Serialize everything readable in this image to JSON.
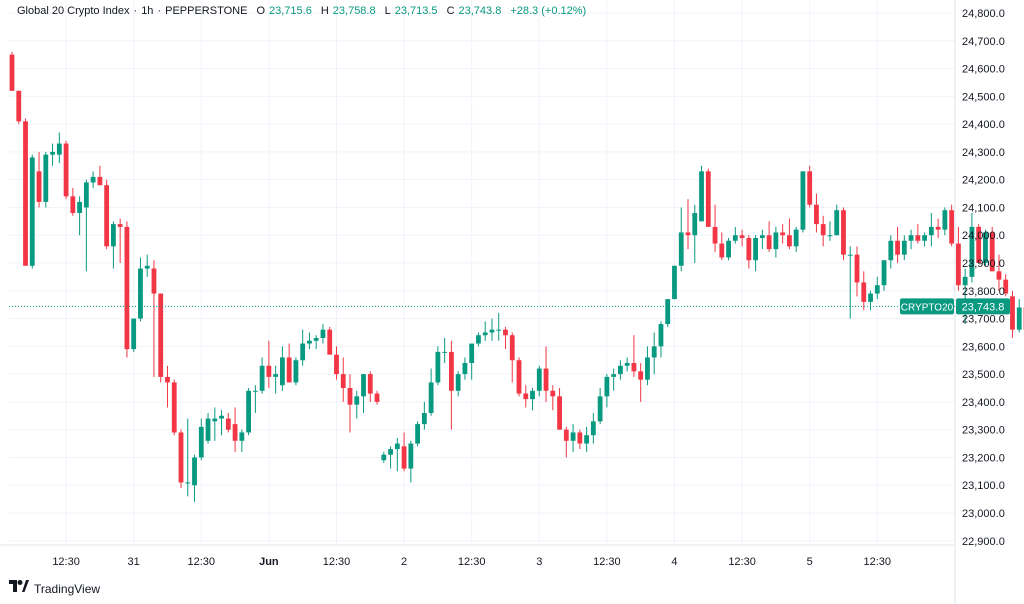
{
  "header": {
    "title": "Global 20 Crypto Index",
    "interval": "1h",
    "source": "PEPPERSTONE",
    "separator1": "·",
    "separator2": "·",
    "o_label": "O",
    "o_value": "23,715.6",
    "h_label": "H",
    "h_value": "23,758.8",
    "l_label": "L",
    "l_value": "23,713.5",
    "c_label": "C",
    "c_value": "23,743.8",
    "change": "+28.3 (+0.12%)"
  },
  "price_badge": {
    "symbol": "CRYPTO20",
    "value": "23,743.8"
  },
  "footer": {
    "brand": "TradingView"
  },
  "colors": {
    "up": "#089981",
    "down": "#f23645",
    "grid": "#f0f3fa",
    "axis_text": "#131722",
    "price_line": "#089981"
  },
  "chart_data": {
    "type": "candlestick",
    "y_axis": {
      "range": [
        22850,
        24840
      ],
      "ticks": [
        22900,
        23000,
        23100,
        23200,
        23300,
        23400,
        23500,
        23600,
        23700,
        23800,
        23900,
        24000,
        24100,
        24200,
        24300,
        24400,
        24500,
        24600,
        24700,
        24800
      ],
      "tick_labels": [
        "22,900.0",
        "23,000.0",
        "23,100.0",
        "23,200.0",
        "23,300.0",
        "23,400.0",
        "23,500.0",
        "23,600.0",
        "23,700.0",
        "23,800.0",
        "23,900.0",
        "24,000.0",
        "24,100.0",
        "24,200.0",
        "24,300.0",
        "24,400.0",
        "24,500.0",
        "24,600.0",
        "24,700.0",
        "24,800.0"
      ]
    },
    "x_axis": {
      "ticks": [
        {
          "bar": 8,
          "label": "12:30",
          "bold": false
        },
        {
          "bar": 18,
          "label": "31",
          "bold": false
        },
        {
          "bar": 28,
          "label": "12:30",
          "bold": false
        },
        {
          "bar": 38,
          "label": "Jun",
          "bold": true
        },
        {
          "bar": 48,
          "label": "12:30",
          "bold": false
        },
        {
          "bar": 58,
          "label": "2",
          "bold": false
        },
        {
          "bar": 68,
          "label": "12:30",
          "bold": false
        },
        {
          "bar": 78,
          "label": "3",
          "bold": false
        },
        {
          "bar": 88,
          "label": "12:30",
          "bold": false
        },
        {
          "bar": 98,
          "label": "4",
          "bold": false
        },
        {
          "bar": 108,
          "label": "12:30",
          "bold": false
        },
        {
          "bar": 118,
          "label": "5",
          "bold": false
        },
        {
          "bar": 128,
          "label": "12:30",
          "bold": false
        }
      ]
    },
    "last_price": 23743.8,
    "candles": [
      [
        24650,
        24660,
        24520,
        24520
      ],
      [
        24520,
        24520,
        24400,
        24410
      ],
      [
        24410,
        24420,
        23890,
        23890
      ],
      [
        23890,
        24290,
        23880,
        24280
      ],
      [
        24230,
        24300,
        24100,
        24120
      ],
      [
        24120,
        24300,
        24100,
        24290
      ],
      [
        24290,
        24330,
        24250,
        24300
      ],
      [
        24290,
        24370,
        24260,
        24330
      ],
      [
        24330,
        24340,
        24130,
        24140
      ],
      [
        24140,
        24170,
        24070,
        24080
      ],
      [
        24080,
        24140,
        24000,
        24120
      ],
      [
        24100,
        24200,
        23870,
        24190
      ],
      [
        24190,
        24230,
        24170,
        24210
      ],
      [
        24210,
        24250,
        24180,
        24180
      ],
      [
        24180,
        24200,
        23950,
        23960
      ],
      [
        23960,
        24050,
        23880,
        24040
      ],
      [
        24040,
        24060,
        23900,
        24030
      ],
      [
        24030,
        24050,
        23560,
        23590
      ],
      [
        23590,
        23700,
        23580,
        23700
      ],
      [
        23700,
        23920,
        23690,
        23880
      ],
      [
        23880,
        23930,
        23850,
        23890
      ],
      [
        23880,
        23910,
        23490,
        23790
      ],
      [
        23790,
        23790,
        23470,
        23490
      ],
      [
        23490,
        23530,
        23380,
        23470
      ],
      [
        23470,
        23480,
        23280,
        23290
      ],
      [
        23290,
        23300,
        23090,
        23110
      ],
      [
        23110,
        23340,
        23060,
        23110
      ],
      [
        23100,
        23210,
        23040,
        23200
      ],
      [
        23200,
        23340,
        23190,
        23310
      ],
      [
        23260,
        23360,
        23250,
        23340
      ],
      [
        23330,
        23380,
        23260,
        23340
      ],
      [
        23340,
        23370,
        23280,
        23350
      ],
      [
        23340,
        23360,
        23290,
        23300
      ],
      [
        23320,
        23380,
        23220,
        23260
      ],
      [
        23260,
        23300,
        23220,
        23290
      ],
      [
        23290,
        23450,
        23280,
        23440
      ],
      [
        23440,
        23460,
        23360,
        23440
      ],
      [
        23440,
        23560,
        23430,
        23530
      ],
      [
        23530,
        23620,
        23450,
        23490
      ],
      [
        23490,
        23530,
        23430,
        23500
      ],
      [
        23460,
        23600,
        23440,
        23560
      ],
      [
        23560,
        23610,
        23470,
        23470
      ],
      [
        23470,
        23560,
        23460,
        23550
      ],
      [
        23550,
        23660,
        23530,
        23610
      ],
      [
        23610,
        23650,
        23590,
        23620
      ],
      [
        23620,
        23640,
        23590,
        23630
      ],
      [
        23630,
        23680,
        23610,
        23660
      ],
      [
        23660,
        23670,
        23570,
        23570
      ],
      [
        23570,
        23600,
        23480,
        23500
      ],
      [
        23500,
        23560,
        23400,
        23450
      ],
      [
        23450,
        23500,
        23290,
        23390
      ],
      [
        23390,
        23440,
        23340,
        23420
      ],
      [
        23420,
        23500,
        23360,
        23500
      ],
      [
        23500,
        23510,
        23400,
        23430
      ],
      [
        23430,
        23440,
        23390,
        23400
      ],
      [
        23190,
        23220,
        23180,
        23210
      ],
      [
        23210,
        23240,
        23160,
        23230
      ],
      [
        23230,
        23270,
        23150,
        23250
      ],
      [
        23240,
        23290,
        23150,
        23160
      ],
      [
        23160,
        23260,
        23110,
        23250
      ],
      [
        23250,
        23330,
        23240,
        23320
      ],
      [
        23320,
        23400,
        23300,
        23360
      ],
      [
        23360,
        23520,
        23350,
        23470
      ],
      [
        23470,
        23600,
        23460,
        23580
      ],
      [
        23580,
        23630,
        23540,
        23580
      ],
      [
        23580,
        23620,
        23300,
        23440
      ],
      [
        23440,
        23510,
        23420,
        23500
      ],
      [
        23500,
        23560,
        23480,
        23540
      ],
      [
        23540,
        23600,
        23480,
        23610
      ],
      [
        23610,
        23650,
        23600,
        23640
      ],
      [
        23640,
        23690,
        23620,
        23650
      ],
      [
        23650,
        23700,
        23620,
        23660
      ],
      [
        23660,
        23720,
        23620,
        23660
      ],
      [
        23660,
        23670,
        23590,
        23640
      ],
      [
        23640,
        23650,
        23470,
        23550
      ],
      [
        23550,
        23560,
        23420,
        23430
      ],
      [
        23430,
        23460,
        23380,
        23410
      ],
      [
        23410,
        23450,
        23370,
        23440
      ],
      [
        23440,
        23530,
        23420,
        23520
      ],
      [
        23520,
        23600,
        23400,
        23440
      ],
      [
        23440,
        23460,
        23370,
        23420
      ],
      [
        23420,
        23450,
        23300,
        23300
      ],
      [
        23300,
        23310,
        23200,
        23260
      ],
      [
        23260,
        23320,
        23220,
        23290
      ],
      [
        23290,
        23300,
        23230,
        23250
      ],
      [
        23250,
        23310,
        23220,
        23280
      ],
      [
        23280,
        23360,
        23250,
        23330
      ],
      [
        23330,
        23450,
        23320,
        23420
      ],
      [
        23420,
        23500,
        23380,
        23490
      ],
      [
        23490,
        23520,
        23440,
        23500
      ],
      [
        23500,
        23550,
        23480,
        23530
      ],
      [
        23530,
        23560,
        23510,
        23540
      ],
      [
        23540,
        23640,
        23490,
        23510
      ],
      [
        23510,
        23540,
        23400,
        23480
      ],
      [
        23480,
        23600,
        23460,
        23560
      ],
      [
        23560,
        23650,
        23500,
        23600
      ],
      [
        23600,
        23690,
        23560,
        23680
      ],
      [
        23680,
        23770,
        23670,
        23770
      ],
      [
        23770,
        23890,
        23770,
        23890
      ],
      [
        23890,
        24100,
        23870,
        24010
      ],
      [
        24010,
        24130,
        23950,
        24000
      ],
      [
        24000,
        24110,
        23900,
        24080
      ],
      [
        24050,
        24250,
        24050,
        24230
      ],
      [
        24230,
        24240,
        24030,
        24030
      ],
      [
        24030,
        24110,
        23940,
        23970
      ],
      [
        23970,
        24010,
        23910,
        23920
      ],
      [
        23920,
        23990,
        23910,
        23980
      ],
      [
        23980,
        24030,
        23970,
        24000
      ],
      [
        24000,
        24020,
        23960,
        23990
      ],
      [
        23990,
        24000,
        23880,
        23910
      ],
      [
        23910,
        24000,
        23870,
        23990
      ],
      [
        23990,
        24020,
        23950,
        24000
      ],
      [
        24000,
        24050,
        23940,
        23950
      ],
      [
        23950,
        24030,
        23920,
        24010
      ],
      [
        24010,
        24040,
        23970,
        24000
      ],
      [
        24000,
        24060,
        23950,
        23960
      ],
      [
        23960,
        24030,
        23940,
        24020
      ],
      [
        24020,
        24230,
        24010,
        24230
      ],
      [
        24230,
        24250,
        24100,
        24110
      ],
      [
        24110,
        24150,
        24010,
        24040
      ],
      [
        24040,
        24070,
        23960,
        24000
      ],
      [
        24000,
        24050,
        23980,
        24000
      ],
      [
        24000,
        24110,
        24000,
        24090
      ],
      [
        24090,
        24100,
        23910,
        23930
      ],
      [
        23930,
        23960,
        23700,
        23930
      ],
      [
        23930,
        23960,
        23780,
        23830
      ],
      [
        23830,
        23870,
        23730,
        23760
      ],
      [
        23760,
        23800,
        23730,
        23790
      ],
      [
        23790,
        23850,
        23770,
        23820
      ],
      [
        23820,
        23900,
        23800,
        23910
      ],
      [
        23910,
        24000,
        23880,
        23980
      ],
      [
        23980,
        24030,
        23900,
        23930
      ],
      [
        23930,
        24000,
        23910,
        23980
      ],
      [
        23980,
        24020,
        23950,
        24000
      ],
      [
        24000,
        24040,
        23970,
        23980
      ],
      [
        23980,
        24010,
        23960,
        24000
      ],
      [
        24000,
        24080,
        23960,
        24030
      ],
      [
        24030,
        24060,
        23990,
        24020
      ],
      [
        24020,
        24100,
        24000,
        24090
      ],
      [
        24090,
        24110,
        23960,
        23970
      ],
      [
        23970,
        24030,
        23800,
        23820
      ],
      [
        23820,
        23880,
        23680,
        23850
      ],
      [
        23850,
        24080,
        23830,
        24030
      ],
      [
        24030,
        24040,
        23910,
        23900
      ],
      [
        23900,
        24020,
        23890,
        24010
      ],
      [
        24010,
        24030,
        23880,
        23870
      ],
      [
        23870,
        23930,
        23800,
        23840
      ],
      [
        23840,
        23860,
        23780,
        23790
      ],
      [
        23780,
        23800,
        23630,
        23660
      ],
      [
        23660,
        23770,
        23650,
        23740
      ],
      [
        23740,
        23750,
        23650,
        23660
      ],
      [
        23660,
        23730,
        23630,
        23680
      ],
      [
        23680,
        23730,
        23670,
        23710
      ],
      [
        23715.6,
        23758.8,
        23713.5,
        23743.8
      ]
    ]
  }
}
